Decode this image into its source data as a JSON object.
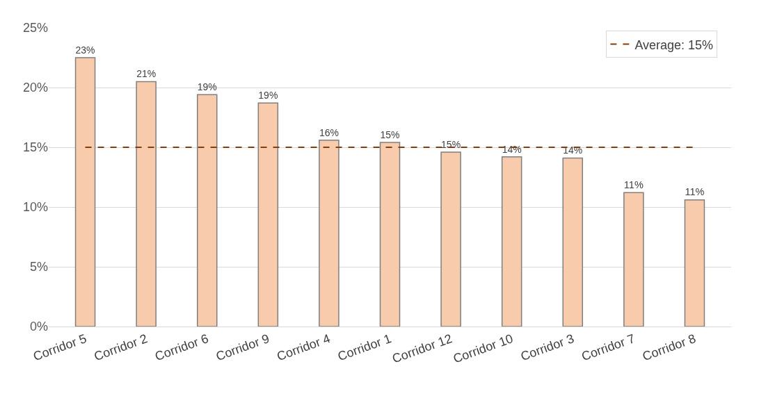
{
  "chart_data": {
    "type": "bar",
    "categories": [
      "Corridor 5",
      "Corridor 2",
      "Corridor 6",
      "Corridor 9",
      "Corridor 4",
      "Corridor 1",
      "Corridor 12",
      "Corridor 10",
      "Corridor 3",
      "Corridor 7",
      "Corridor 8"
    ],
    "values": [
      22.5,
      20.5,
      19.4,
      18.7,
      15.6,
      15.4,
      14.6,
      14.2,
      14.1,
      11.2,
      10.6
    ],
    "value_labels": [
      "23%",
      "21%",
      "19%",
      "19%",
      "16%",
      "15%",
      "15%",
      "14%",
      "14%",
      "11%",
      "11%"
    ],
    "color": "#f8cbad",
    "ylim": [
      0,
      25
    ],
    "yticks": [
      {
        "value": 0,
        "label": "0%"
      },
      {
        "value": 5,
        "label": "5%"
      },
      {
        "value": 10,
        "label": "10%"
      },
      {
        "value": 15,
        "label": "15%"
      },
      {
        "value": 20,
        "label": "20%"
      },
      {
        "value": 25,
        "label": "25%"
      }
    ],
    "ref_lines": [
      {
        "axis": "y",
        "value": 15,
        "label": "Average: 15%",
        "color": "#843c0c",
        "line_style": "dashed"
      }
    ],
    "grid": "y",
    "legend": "top right"
  }
}
